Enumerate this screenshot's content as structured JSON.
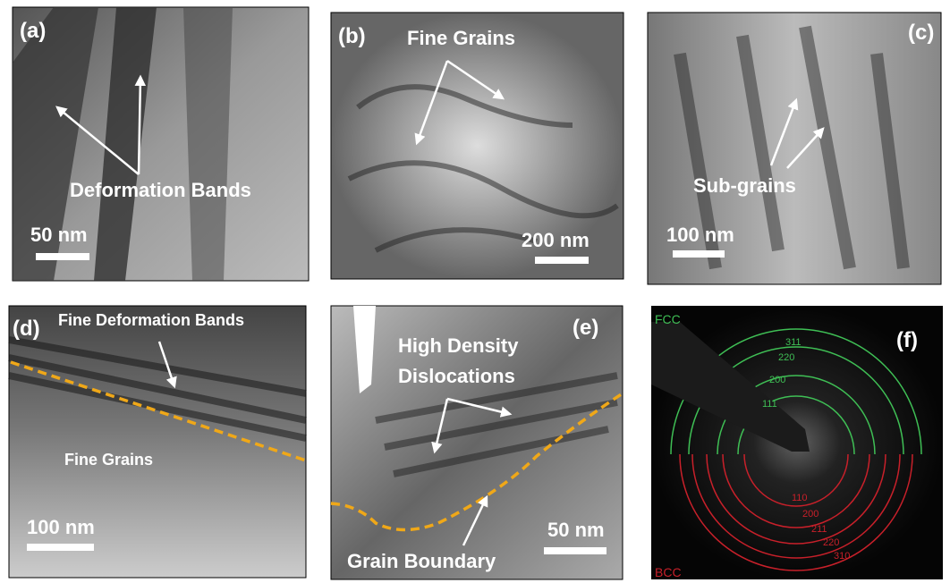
{
  "panels": [
    {
      "label": "(a)",
      "annotations": [
        "Deformation Bands"
      ],
      "scale_bar": "50 nm"
    },
    {
      "label": "(b)",
      "annotations": [
        "Fine Grains"
      ],
      "scale_bar": "200 nm"
    },
    {
      "label": "(c)",
      "annotations": [
        "Sub-grains"
      ],
      "scale_bar": "100 nm"
    },
    {
      "label": "(d)",
      "annotations": [
        "Fine Deformation Bands",
        "Fine Grains"
      ],
      "scale_bar": "100 nm"
    },
    {
      "label": "(e)",
      "annotations": [
        "High Density",
        "Dislocations",
        "Grain Boundary"
      ],
      "scale_bar": "50 nm"
    },
    {
      "label": "(f)",
      "phases": [
        {
          "name": "FCC",
          "rings": [
            "311",
            "220",
            "200",
            "111"
          ]
        },
        {
          "name": "BCC",
          "rings": [
            "110",
            "200",
            "211",
            "220",
            "310"
          ]
        }
      ]
    }
  ]
}
